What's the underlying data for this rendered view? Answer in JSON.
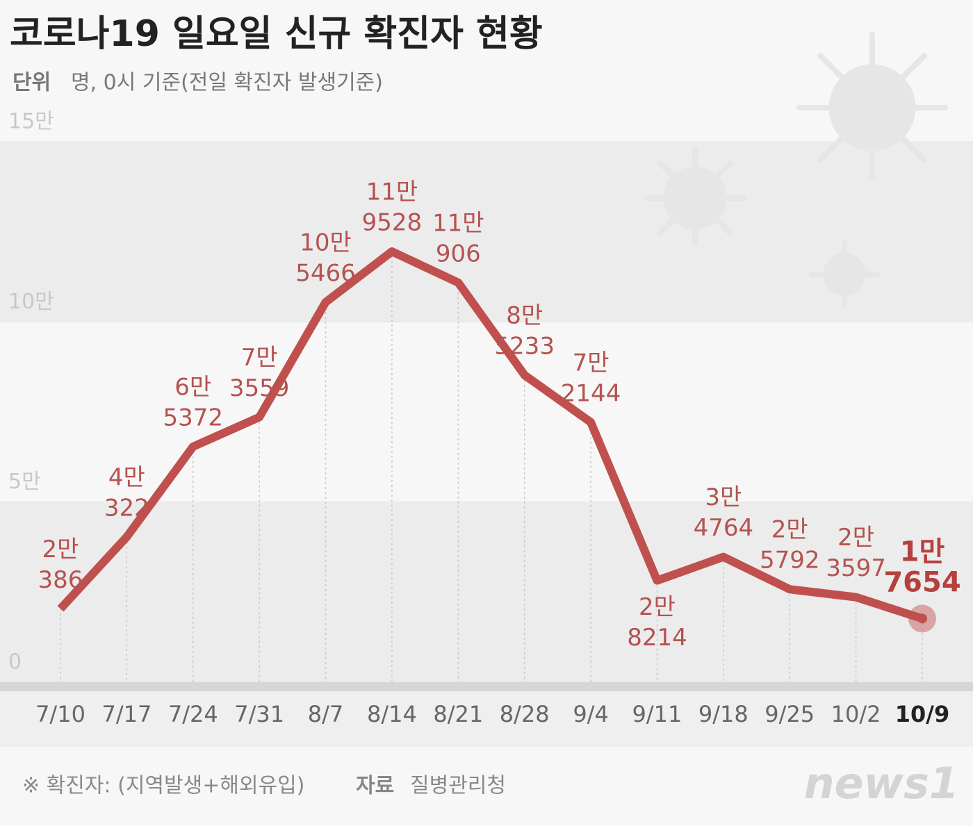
{
  "chart_data": {
    "type": "line",
    "title": "코로나19 일요일 신규 확진자 현황",
    "unit_label": "단위",
    "unit_text": "명, 0시 기준(전일 확진자 발생기준)",
    "categories": [
      "7/10",
      "7/17",
      "7/24",
      "7/31",
      "8/7",
      "8/14",
      "8/21",
      "8/28",
      "9/4",
      "9/11",
      "9/18",
      "9/25",
      "10/2",
      "10/9"
    ],
    "series": [
      {
        "color": "#c0504d",
        "values": [
          20386,
          40322,
          65372,
          73559,
          105466,
          119528,
          110906,
          85233,
          72144,
          28214,
          34764,
          25792,
          23597,
          17654
        ],
        "value_labels": [
          [
            "2만",
            "386"
          ],
          [
            "4만",
            "322"
          ],
          [
            "6만",
            "5372"
          ],
          [
            "7만",
            "3559"
          ],
          [
            "10만",
            "5466"
          ],
          [
            "11만",
            "9528"
          ],
          [
            "11만",
            "906"
          ],
          [
            "8만",
            "5233"
          ],
          [
            "7만",
            "2144"
          ],
          [
            "2만",
            "8214"
          ],
          [
            "3만",
            "4764"
          ],
          [
            "2만",
            "5792"
          ],
          [
            "2만",
            "3597"
          ],
          [
            "1만",
            "7654"
          ]
        ]
      }
    ],
    "ylim": [
      0,
      150000
    ],
    "yticks": [
      0,
      {
        "value": 50000,
        "label": "5만"
      },
      {
        "value": 100000,
        "label": "10만"
      },
      {
        "value": 150000,
        "label": "15만"
      }
    ],
    "note": "※ 확진자: (지역발생+해외유입)",
    "source_label": "자료",
    "source": "질병관리청",
    "logo": "news1"
  }
}
